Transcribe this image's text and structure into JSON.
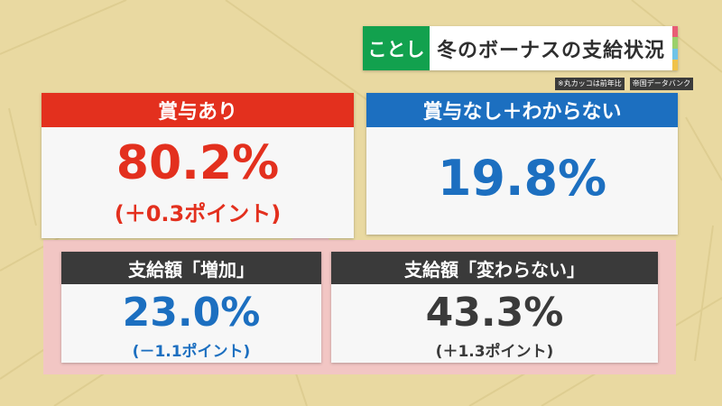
{
  "colors": {
    "background": "#e9d9a1",
    "red": "#e3301e",
    "blue": "#1c6fc0",
    "dark": "#3a3a3a",
    "green": "#12a14e",
    "pink": "#f2c6c4"
  },
  "title": {
    "tag": "ことし",
    "text": "冬のボーナスの支給状況"
  },
  "notes": {
    "comparison": "※丸カッコは前年比",
    "source": "帝国データバンク"
  },
  "bonus_yes": {
    "label": "賞与あり",
    "value": "80.2%",
    "change": "(＋0.3ポイント)"
  },
  "bonus_no": {
    "label": "賞与なし＋わからない",
    "value": "19.8%"
  },
  "increase": {
    "label": "支給額「増加」",
    "value": "23.0%",
    "change": "(－1.1ポイント)"
  },
  "unchanged": {
    "label": "支給額「変わらない」",
    "value": "43.3%",
    "change": "(＋1.3ポイント)"
  }
}
